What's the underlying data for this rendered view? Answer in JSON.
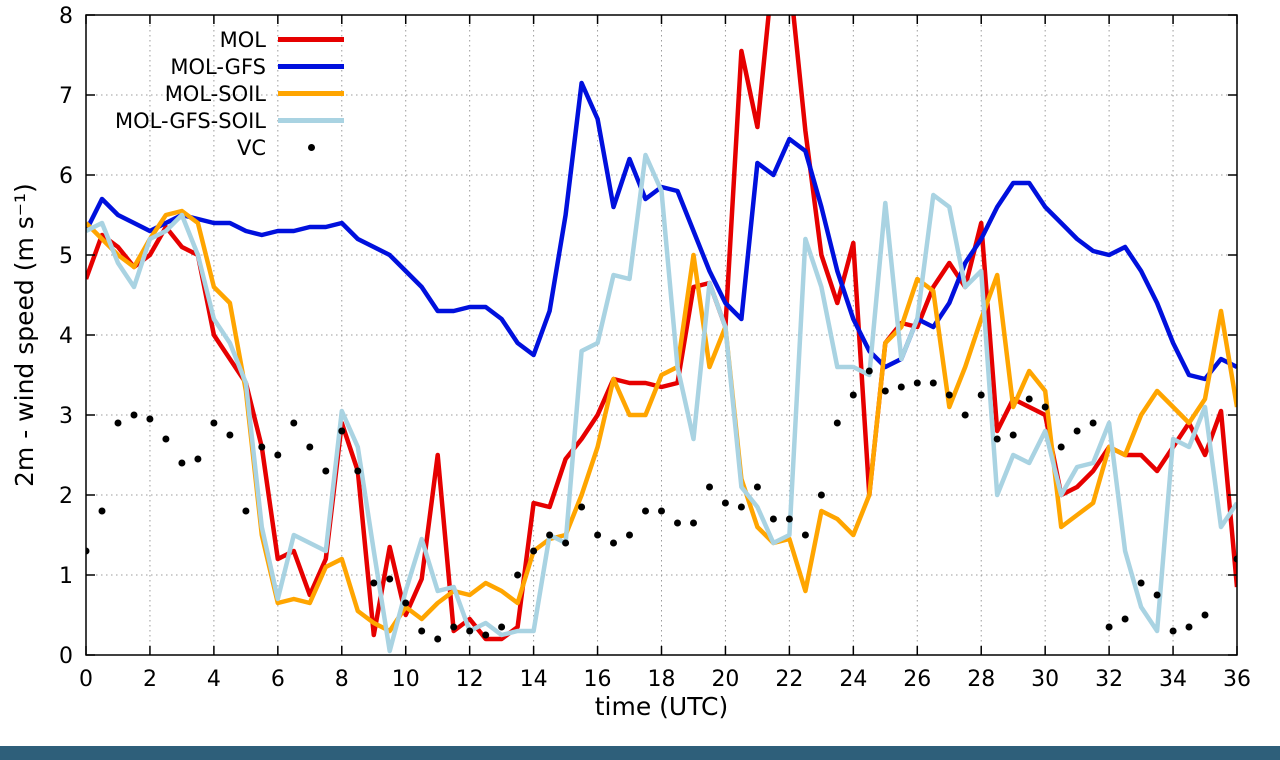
{
  "page": {
    "background": "#ffffff",
    "footer_bar_color": "#2e5f7a"
  },
  "chart_data": {
    "type": "line",
    "title": "",
    "xlabel": "time (UTC)",
    "ylabel": "2m - wind speed  (m s⁻¹)",
    "xlim": [
      0,
      36
    ],
    "ylim": [
      0,
      8
    ],
    "xticks": [
      0,
      2,
      4,
      6,
      8,
      10,
      12,
      14,
      16,
      18,
      20,
      22,
      24,
      26,
      28,
      30,
      32,
      34,
      36
    ],
    "yticks": [
      0,
      1,
      2,
      3,
      4,
      5,
      6,
      7,
      8
    ],
    "grid": true,
    "grid_color": "#9b9b9b",
    "legend_position": "top-left",
    "x_start": 0,
    "x_step": 0.5,
    "series": [
      {
        "name": "MOL",
        "type": "line",
        "color": "#e60000",
        "width": 4.5,
        "values": [
          4.7,
          5.25,
          5.1,
          4.85,
          5.0,
          5.35,
          5.1,
          5.0,
          4.0,
          3.7,
          3.4,
          2.6,
          1.2,
          1.3,
          0.75,
          1.2,
          2.9,
          2.3,
          0.25,
          1.35,
          0.5,
          0.95,
          2.5,
          0.3,
          0.45,
          0.2,
          0.2,
          0.35,
          1.9,
          1.85,
          2.45,
          2.7,
          3.0,
          3.45,
          3.4,
          3.4,
          3.35,
          3.4,
          4.6,
          4.65,
          4.1,
          7.55,
          6.6,
          8.6,
          8.5,
          6.55,
          5.0,
          4.4,
          5.15,
          2.0,
          3.9,
          4.15,
          4.1,
          4.6,
          4.9,
          4.6,
          5.4,
          2.8,
          3.2,
          3.1,
          3.0,
          2.0,
          2.1,
          2.3,
          2.6,
          2.5,
          2.5,
          2.3,
          2.6,
          2.9,
          2.5,
          3.05,
          0.85
        ]
      },
      {
        "name": "MOL-GFS",
        "type": "line",
        "color": "#0010dd",
        "width": 4.5,
        "values": [
          5.3,
          5.7,
          5.5,
          5.4,
          5.3,
          5.4,
          5.5,
          5.45,
          5.4,
          5.4,
          5.3,
          5.25,
          5.3,
          5.3,
          5.35,
          5.35,
          5.4,
          5.2,
          5.1,
          5.0,
          4.8,
          4.6,
          4.3,
          4.3,
          4.35,
          4.35,
          4.2,
          3.9,
          3.75,
          4.3,
          5.5,
          7.15,
          6.7,
          5.6,
          6.2,
          5.7,
          5.85,
          5.8,
          5.3,
          4.8,
          4.4,
          4.2,
          6.15,
          6.0,
          6.45,
          6.3,
          5.6,
          4.8,
          4.2,
          3.8,
          3.6,
          3.7,
          4.2,
          4.1,
          4.4,
          4.9,
          5.2,
          5.6,
          5.9,
          5.9,
          5.6,
          5.4,
          5.2,
          5.05,
          5.0,
          5.1,
          4.8,
          4.4,
          3.9,
          3.5,
          3.45,
          3.7,
          3.6
        ]
      },
      {
        "name": "MOL-SOIL",
        "type": "line",
        "color": "#ffa500",
        "width": 4.5,
        "values": [
          5.4,
          5.2,
          5.0,
          4.85,
          5.2,
          5.5,
          5.55,
          5.4,
          4.6,
          4.4,
          3.3,
          1.5,
          0.65,
          0.7,
          0.65,
          1.1,
          1.2,
          0.55,
          0.4,
          0.3,
          0.6,
          0.45,
          0.65,
          0.8,
          0.75,
          0.9,
          0.8,
          0.65,
          1.3,
          1.45,
          1.5,
          2.0,
          2.6,
          3.45,
          3.0,
          3.0,
          3.5,
          3.6,
          5.0,
          3.6,
          4.1,
          2.2,
          1.6,
          1.4,
          1.45,
          0.8,
          1.8,
          1.7,
          1.5,
          2.0,
          3.9,
          4.1,
          4.7,
          4.55,
          3.1,
          3.6,
          4.2,
          4.75,
          3.1,
          3.55,
          3.3,
          1.6,
          1.75,
          1.9,
          2.6,
          2.5,
          3.0,
          3.3,
          3.1,
          2.9,
          3.2,
          4.3,
          3.1
        ]
      },
      {
        "name": "MOL-GFS-SOIL",
        "type": "line",
        "color": "#a9d3e2",
        "width": 4.5,
        "values": [
          5.3,
          5.4,
          4.9,
          4.6,
          5.2,
          5.3,
          5.5,
          5.0,
          4.2,
          3.9,
          3.4,
          1.6,
          0.7,
          1.5,
          1.4,
          1.3,
          3.05,
          2.6,
          1.3,
          0.05,
          0.8,
          1.45,
          0.8,
          0.85,
          0.3,
          0.4,
          0.25,
          0.3,
          0.3,
          1.5,
          1.4,
          3.8,
          3.9,
          4.75,
          4.7,
          6.25,
          5.8,
          3.6,
          2.7,
          4.65,
          4.1,
          2.1,
          1.85,
          1.4,
          1.5,
          5.2,
          4.6,
          3.6,
          3.6,
          3.5,
          5.65,
          3.7,
          4.2,
          5.75,
          5.6,
          4.6,
          4.8,
          2.0,
          2.5,
          2.4,
          2.8,
          2.0,
          2.35,
          2.4,
          2.9,
          1.3,
          0.6,
          0.3,
          2.7,
          2.6,
          3.1,
          1.6,
          1.9
        ]
      },
      {
        "name": "VC",
        "type": "scatter",
        "color": "#000000",
        "marker": "dot",
        "marker_radius": 3.5,
        "values": [
          1.3,
          1.8,
          2.9,
          3.0,
          2.95,
          2.7,
          2.4,
          2.45,
          2.9,
          2.75,
          1.8,
          2.6,
          2.5,
          2.9,
          2.6,
          2.3,
          2.8,
          2.3,
          0.9,
          0.95,
          0.65,
          0.3,
          0.2,
          0.35,
          0.3,
          0.25,
          0.35,
          1.0,
          1.3,
          1.5,
          1.4,
          1.85,
          1.5,
          1.4,
          1.5,
          1.8,
          1.8,
          1.65,
          1.65,
          2.1,
          1.9,
          1.85,
          2.1,
          1.7,
          1.7,
          1.5,
          2.0,
          2.9,
          3.25,
          3.55,
          3.3,
          3.35,
          3.4,
          3.4,
          3.25,
          3.0,
          3.25,
          2.7,
          2.75,
          3.2,
          3.1,
          2.6,
          2.8,
          2.9,
          0.35,
          0.45,
          0.9,
          0.75,
          0.3,
          0.35,
          0.5,
          null,
          1.2
        ]
      }
    ]
  }
}
